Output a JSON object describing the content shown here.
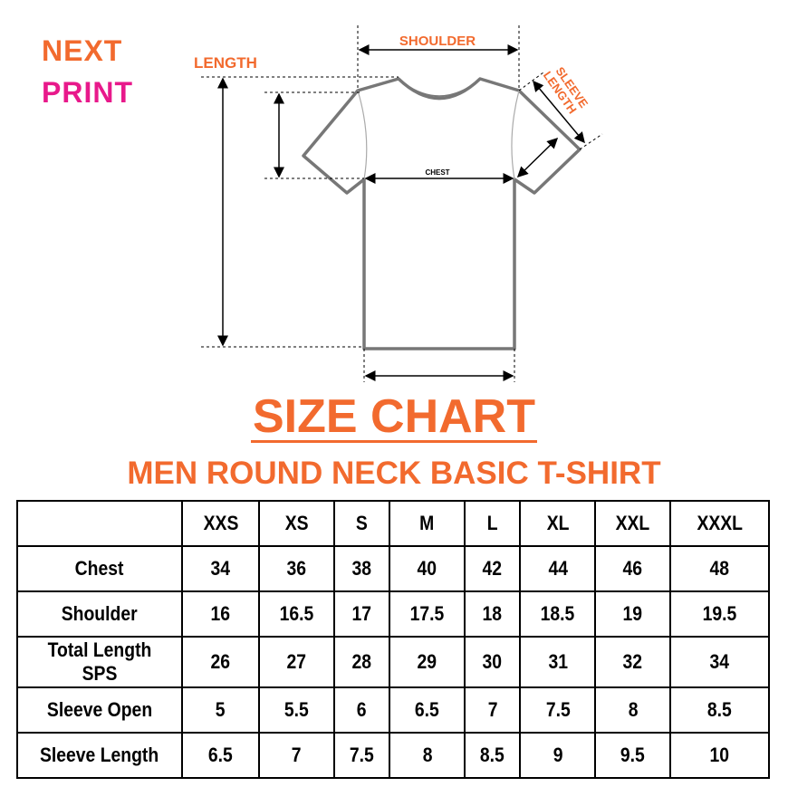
{
  "brand": {
    "line1": "NEXT",
    "line2": "PRINT",
    "color1": "#f26a2e",
    "color2": "#e8198b"
  },
  "diagram": {
    "shoulder": "SHOULDER",
    "length": "LENGTH",
    "sleeve_length": "SLEEVE LENGTH",
    "chest": "CHEST"
  },
  "title": "SIZE CHART",
  "subtitle": "MEN ROUND NECK BASIC T-SHIRT",
  "accent": "#f26a2e",
  "table": {
    "headers": [
      "",
      "XXS",
      "XS",
      "S",
      "M",
      "L",
      "XL",
      "XXL",
      "XXXL"
    ],
    "rows": [
      {
        "label": "Chest",
        "values": [
          "34",
          "36",
          "38",
          "40",
          "42",
          "44",
          "46",
          "48"
        ]
      },
      {
        "label": "Shoulder",
        "values": [
          "16",
          "16.5",
          "17",
          "17.5",
          "18",
          "18.5",
          "19",
          "19.5"
        ]
      },
      {
        "label": "Total Length SPS",
        "values": [
          "26",
          "27",
          "28",
          "29",
          "30",
          "31",
          "32",
          "34"
        ]
      },
      {
        "label": "Sleeve Open",
        "values": [
          "5",
          "5.5",
          "6",
          "6.5",
          "7",
          "7.5",
          "8",
          "8.5"
        ]
      },
      {
        "label": "Sleeve Length",
        "values": [
          "6.5",
          "7",
          "7.5",
          "8",
          "8.5",
          "9",
          "9.5",
          "10"
        ]
      }
    ]
  }
}
